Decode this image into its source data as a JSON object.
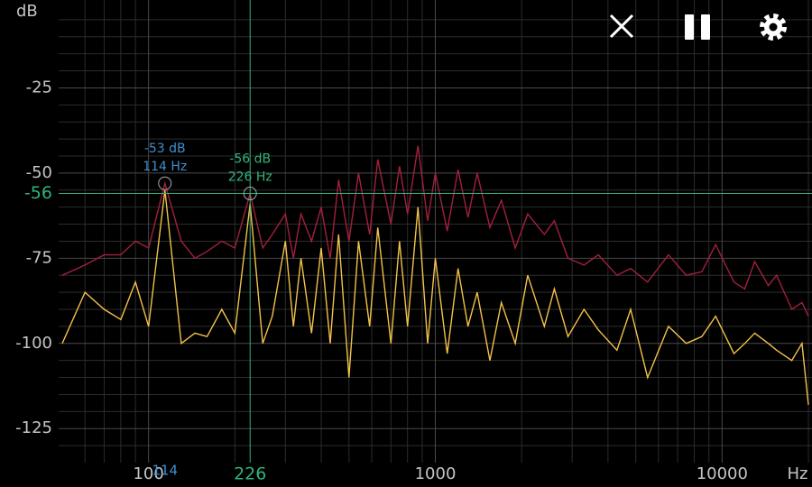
{
  "chart_data": {
    "type": "line",
    "y_label": "dB",
    "x_label": "Hz",
    "x_scale": "log",
    "xlim": [
      50,
      20000
    ],
    "ylim": [
      -135,
      0
    ],
    "xticks": [
      100,
      1000,
      10000
    ],
    "yticks": [
      -25,
      -50,
      -75,
      -100,
      -125
    ],
    "minor_xticks": [
      60,
      70,
      80,
      90,
      200,
      300,
      400,
      500,
      600,
      700,
      800,
      900,
      2000,
      3000,
      4000,
      5000,
      6000,
      7000,
      8000,
      9000,
      20000
    ],
    "minor_yticks": [
      -5,
      -10,
      -15,
      -20,
      -30,
      -35,
      -40,
      -45,
      -55,
      -60,
      -65,
      -70,
      -80,
      -85,
      -90,
      -95,
      -105,
      -110,
      -115,
      -120,
      -130
    ],
    "grid": true,
    "x": [
      50,
      60,
      70,
      80,
      90,
      100,
      114,
      130,
      145,
      160,
      180,
      200,
      226,
      250,
      270,
      300,
      320,
      340,
      370,
      400,
      430,
      460,
      500,
      540,
      590,
      630,
      700,
      750,
      800,
      870,
      940,
      1000,
      1100,
      1200,
      1300,
      1400,
      1550,
      1700,
      1900,
      2100,
      2400,
      2600,
      2900,
      3300,
      3700,
      4300,
      4800,
      5500,
      6500,
      7500,
      8500,
      9500,
      11000,
      12000,
      13000,
      14500,
      15500,
      17500,
      19000,
      20000
    ],
    "series": [
      {
        "color": "#a3203c",
        "values": [
          -80,
          -77,
          -74,
          -74,
          -70,
          -72,
          -53,
          -70,
          -75,
          -73,
          -70,
          -72,
          -56,
          -72,
          -68,
          -62,
          -75,
          -62,
          -70,
          -60,
          -75,
          -52,
          -70,
          -50,
          -68,
          -46,
          -65,
          -48,
          -62,
          -42,
          -64,
          -50,
          -67,
          -49,
          -63,
          -50,
          -66,
          -58,
          -72,
          -62,
          -68,
          -64,
          -75,
          -77,
          -74,
          -80,
          -78,
          -82,
          -74,
          -80,
          -79,
          -71,
          -82,
          -84,
          -76,
          -83,
          -80,
          -90,
          -88,
          -92
        ]
      },
      {
        "color": "#f2c24a",
        "values": [
          -100,
          -85,
          -90,
          -93,
          -82,
          -95,
          -55,
          -100,
          -97,
          -98,
          -90,
          -97,
          -59,
          -100,
          -92,
          -70,
          -95,
          -75,
          -97,
          -72,
          -100,
          -68,
          -110,
          -70,
          -95,
          -66,
          -100,
          -70,
          -95,
          -60,
          -100,
          -75,
          -103,
          -78,
          -95,
          -85,
          -105,
          -88,
          -100,
          -80,
          -95,
          -84,
          -98,
          -90,
          -96,
          -102,
          -90,
          -110,
          -95,
          -100,
          -98,
          -92,
          -103,
          -100,
          -97,
          -100,
          -102,
          -105,
          -100,
          -118
        ]
      }
    ],
    "peak": {
      "x": 114,
      "y": -53,
      "color": "#3d8fd1",
      "label_level": "-53 dB",
      "label_freq": "114 Hz"
    },
    "cursor": {
      "x": 226,
      "y": -56,
      "color": "#2fb47a",
      "label_level": "-56 dB",
      "label_freq": "226 Hz"
    }
  }
}
